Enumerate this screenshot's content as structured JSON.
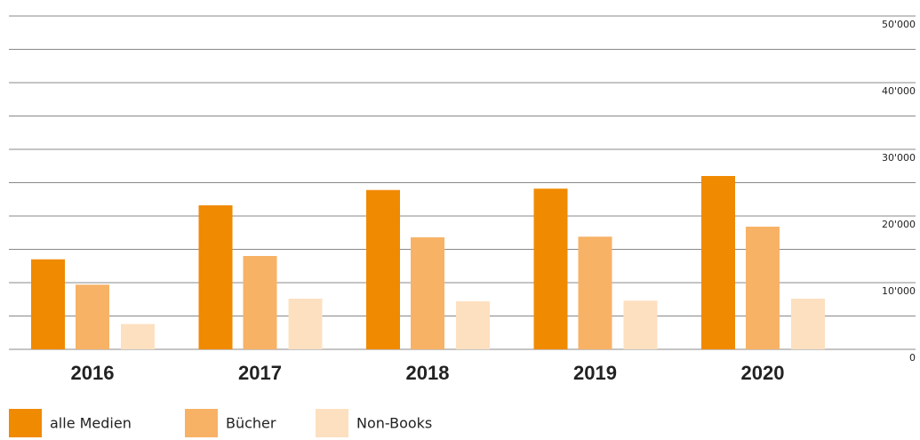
{
  "chart_data": {
    "type": "bar",
    "categories": [
      "2016",
      "2017",
      "2018",
      "2019",
      "2020"
    ],
    "series": [
      {
        "name": "alle Medien",
        "color": "#f08a00",
        "values": [
          13500,
          21600,
          23900,
          24100,
          26000
        ]
      },
      {
        "name": "Bücher",
        "color": "#f7b266",
        "values": [
          9700,
          14000,
          16800,
          16900,
          18400
        ]
      },
      {
        "name": "Non-Books",
        "color": "#fde0c0",
        "values": [
          3800,
          7600,
          7200,
          7300,
          7600
        ]
      }
    ],
    "ylim": [
      0,
      50000
    ],
    "yticks": [
      0,
      {
        "value": 10000,
        "label": "10'000"
      },
      {
        "value": 20000,
        "label": "20'000"
      },
      {
        "value": 30000,
        "label": "30'000"
      },
      {
        "value": 40000,
        "label": "40'000"
      },
      {
        "value": 50000,
        "label": "50'000"
      }
    ],
    "minor_yticks": [
      5000,
      15000,
      25000,
      35000,
      45000
    ],
    "grid": true,
    "y_axis_side": "right",
    "legend": "bottom-left"
  }
}
